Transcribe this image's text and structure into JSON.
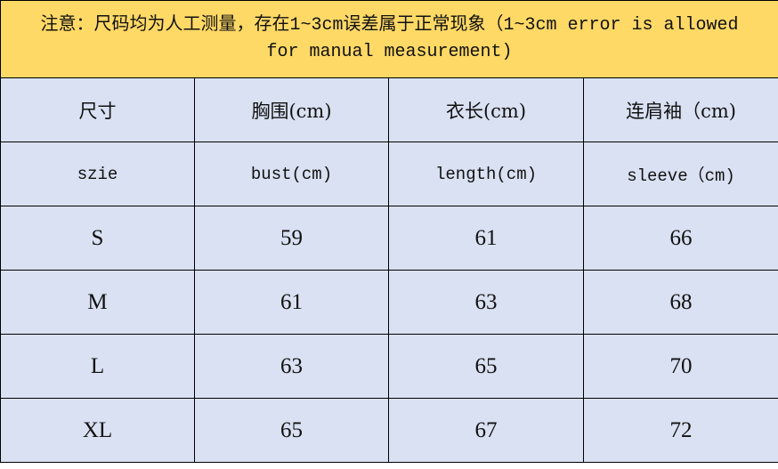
{
  "note": "注意：尺码均为人工测量，存在1~3cm误差属于正常现象（1~3cm error is allowed for manual measurement)",
  "colors": {
    "note_bg": "#FFD966",
    "cell_bg": "#D9E1F2"
  },
  "header_cn": [
    "尺寸",
    "胸围(cm)",
    "衣长(cm)",
    "连肩袖（cm)"
  ],
  "header_en": [
    "szie",
    "bust(cm)",
    "length(cm)",
    "sleeve（cm)"
  ],
  "rows": [
    [
      "S",
      "59",
      "61",
      "66"
    ],
    [
      "M",
      "61",
      "63",
      "68"
    ],
    [
      "L",
      "63",
      "65",
      "70"
    ],
    [
      "XL",
      "65",
      "67",
      "72"
    ]
  ]
}
